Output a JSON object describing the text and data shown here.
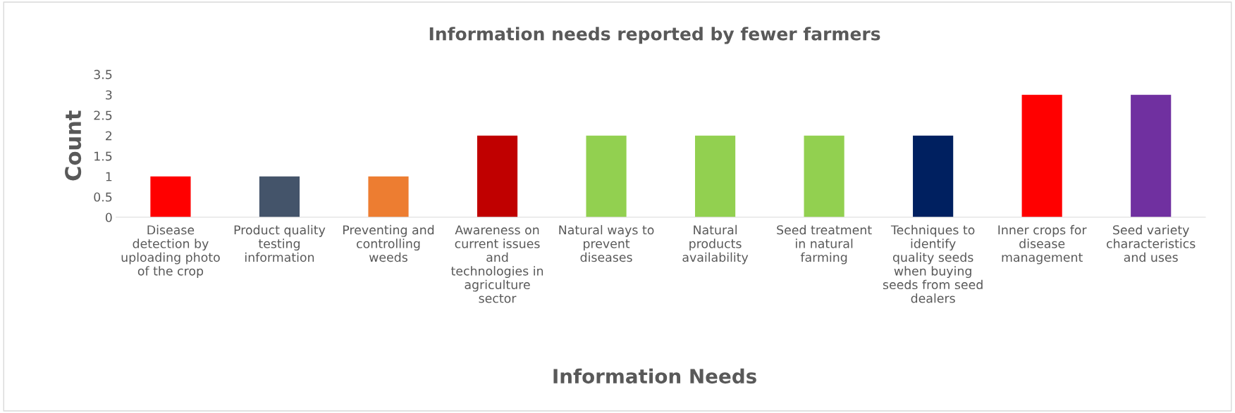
{
  "chart_data": {
    "type": "bar",
    "title": "Information needs reported by fewer farmers",
    "xlabel": "Information Needs",
    "ylabel": "Count",
    "categories": [
      "Disease detection by uploading photo of the crop",
      "Product quality testing information",
      "Preventing and controlling weeds",
      "Awareness on current issues and technologies in agriculture sector",
      "Natural ways to prevent diseases",
      "Natural products availability",
      "Seed treatment in natural farming",
      "Techniques to identify quality seeds when buying seeds from seed dealers",
      "Inner crops for disease management",
      "Seed variety characteristics and uses"
    ],
    "values": [
      1,
      1,
      1,
      2,
      2,
      2,
      2,
      2,
      3,
      3
    ],
    "colors": [
      "#ff0000",
      "#44546a",
      "#ed7d31",
      "#c00000",
      "#92d050",
      "#92d050",
      "#92d050",
      "#002060",
      "#ff0000",
      "#7030a0"
    ],
    "ylim": [
      0,
      3.5
    ],
    "yticks": [
      0,
      0.5,
      1,
      1.5,
      2,
      2.5,
      3,
      3.5
    ],
    "grid": false
  }
}
